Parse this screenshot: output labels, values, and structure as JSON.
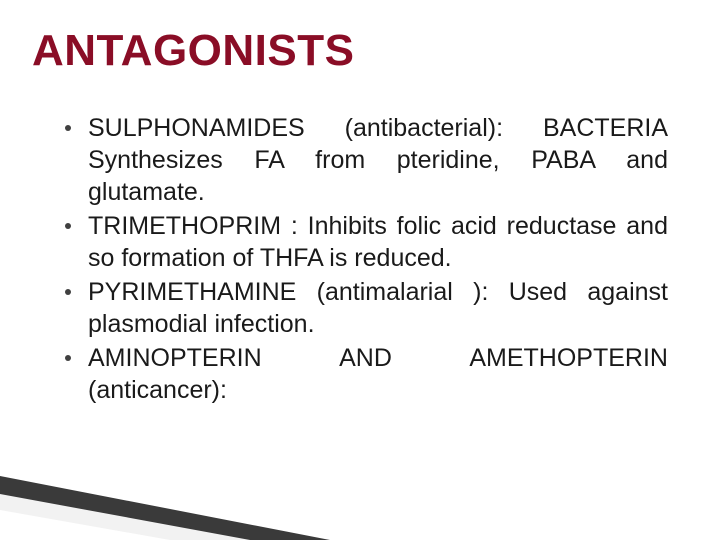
{
  "title": "ANTAGONISTS",
  "title_color": "#8a0d26",
  "title_fontsize": 44,
  "body_fontsize": 25,
  "body_color": "#1a1a1a",
  "bullet_color": "#404040",
  "background_color": "#ffffff",
  "wedge_colors": {
    "dark": "#3a3a3a",
    "light": "#f2f2f2",
    "white": "#ffffff"
  },
  "bullets": [
    "SULPHONAMIDES (antibacterial): BACTERIA Synthesizes FA from pteridine, PABA and glutamate.",
    "TRIMETHOPRIM : Inhibits folic acid reductase and so formation of THFA is reduced.",
    "PYRIMETHAMINE (antimalarial ): Used against plasmodial infection.",
    "AMINOPTERIN AND AMETHOPTERIN (anticancer):"
  ]
}
